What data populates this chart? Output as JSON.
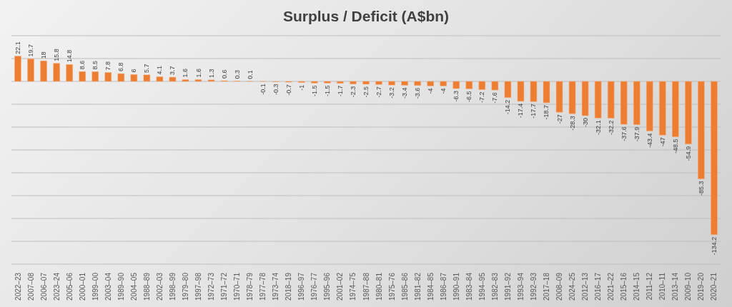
{
  "chart_data": {
    "type": "bar",
    "title": "Surplus / Deficit (A$bn)",
    "categories": [
      "2022–23",
      "2007–08",
      "2006–07",
      "2023–24",
      "2005–06",
      "2000–01",
      "1999–00",
      "2003–04",
      "1989–90",
      "2004–05",
      "1988–89",
      "2002–03",
      "1998–99",
      "1979–80",
      "1997–98",
      "1972–73",
      "1971–72",
      "1970–71",
      "1978–79",
      "1977–78",
      "1973–74",
      "2018–19",
      "1996–97",
      "1976–77",
      "1995–96",
      "2001–02",
      "1974–75",
      "1987–88",
      "1980–81",
      "1975–76",
      "1985–86",
      "1981–82",
      "1984–85",
      "1986–87",
      "1990–91",
      "1983–84",
      "1994–95",
      "1982–83",
      "1991–92",
      "1993–94",
      "1992–93",
      "2017–18",
      "2008–09",
      "2024–25",
      "2012–13",
      "2016–17",
      "2021–22",
      "2015–16",
      "2014–15",
      "2011–12",
      "2010–11",
      "2013–14",
      "2009–10",
      "2019–20",
      "2020–21"
    ],
    "values": [
      22.1,
      19.7,
      18,
      15.8,
      14.8,
      8.6,
      8.5,
      7.8,
      6.8,
      6,
      5.7,
      4.1,
      3.7,
      1.6,
      1.6,
      1.3,
      0.6,
      0.3,
      0.1,
      -0.1,
      -0.3,
      -0.7,
      -1,
      -1.5,
      -1.5,
      -1.7,
      -2.3,
      -2.5,
      -2.7,
      -3.2,
      -3.4,
      -3.6,
      -4,
      -4,
      -6.3,
      -6.5,
      -7.2,
      -7.6,
      -14.2,
      -17.4,
      -17.7,
      -18.7,
      -27,
      -28.3,
      -30,
      -32.1,
      -32.2,
      -37.6,
      -37.9,
      -43.4,
      -47,
      -48.5,
      -54.9,
      -85.3,
      -134.2
    ],
    "color": "#ed7d31",
    "data_labels": true,
    "ylim": [
      -160,
      40
    ],
    "grid": "y",
    "tick_labels": "x"
  }
}
